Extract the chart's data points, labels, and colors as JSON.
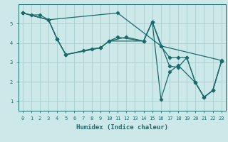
{
  "xlabel": "Humidex (Indice chaleur)",
  "xlim": [
    -0.5,
    23.5
  ],
  "ylim": [
    0.5,
    6.0
  ],
  "yticks": [
    1,
    2,
    3,
    4,
    5
  ],
  "xticks": [
    0,
    1,
    2,
    3,
    4,
    5,
    6,
    7,
    8,
    9,
    10,
    11,
    12,
    13,
    14,
    15,
    16,
    17,
    18,
    19,
    20,
    21,
    22,
    23
  ],
  "bg_color": "#cce8e8",
  "grid_color": "#aacccc",
  "line_color": "#1a6b6b",
  "lines": [
    {
      "x": [
        0,
        1,
        2,
        3,
        11,
        16,
        23
      ],
      "y": [
        5.55,
        5.45,
        5.45,
        5.2,
        5.55,
        3.85,
        3.1
      ]
    },
    {
      "x": [
        0,
        3,
        4,
        5,
        7,
        8,
        9,
        10,
        11,
        14,
        15,
        17,
        18,
        19,
        20,
        21,
        22,
        23
      ],
      "y": [
        5.55,
        5.2,
        4.2,
        3.4,
        3.6,
        3.7,
        3.75,
        4.1,
        4.3,
        4.1,
        5.1,
        2.8,
        2.75,
        3.25,
        1.95,
        1.2,
        1.55,
        3.05
      ]
    },
    {
      "x": [
        0,
        3,
        4,
        5,
        9,
        10,
        12,
        14,
        15,
        16,
        17,
        18,
        20,
        21,
        22,
        23
      ],
      "y": [
        5.55,
        5.2,
        4.2,
        3.4,
        3.75,
        4.1,
        4.3,
        4.1,
        5.1,
        1.1,
        2.5,
        2.85,
        1.95,
        1.2,
        1.55,
        3.05
      ]
    },
    {
      "x": [
        0,
        3,
        4,
        5,
        9,
        10,
        14,
        15,
        16,
        17,
        18,
        19,
        20,
        21,
        22,
        23
      ],
      "y": [
        5.55,
        5.2,
        4.2,
        3.4,
        3.75,
        4.1,
        4.1,
        5.1,
        3.85,
        3.25,
        3.25,
        3.25,
        1.95,
        1.2,
        1.55,
        3.05
      ]
    }
  ]
}
